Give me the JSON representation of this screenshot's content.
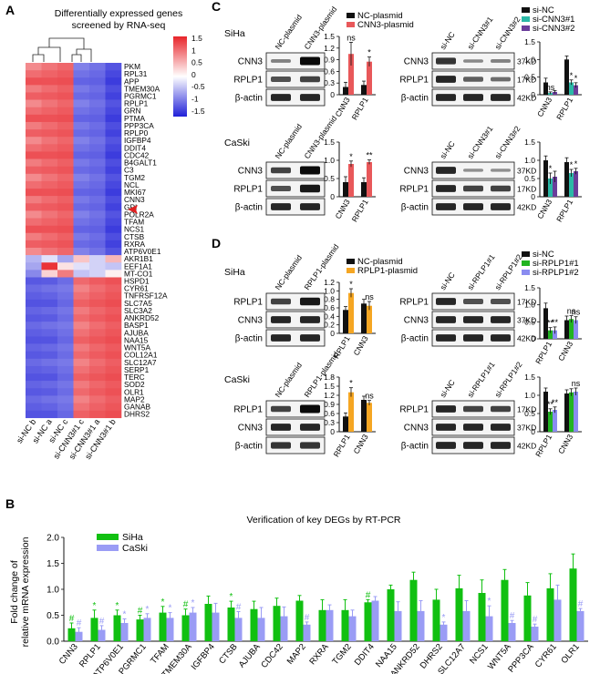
{
  "panel_a": {
    "letter": "A",
    "title_line1": "Differentially expressed genes",
    "title_line2": "screened by RNA-seq",
    "legend_ticks": [
      "1.5",
      "1",
      "0.5",
      "0",
      "-0.5",
      "-1",
      "-1.5"
    ],
    "genes": [
      "PKM",
      "RPL31",
      "APP",
      "TMEM30A",
      "PGRMC1",
      "RPLP1",
      "GRN",
      "PTMA",
      "PPP3CA",
      "RPLP0",
      "IGFBP4",
      "DDIT4",
      "CDC42",
      "B4GALT1",
      "C3",
      "TGM2",
      "NCL",
      "MKI67",
      "CNN3",
      "GPI",
      "POLR2A",
      "TFAM",
      "NCS1",
      "CTSB",
      "RXRA",
      "ATP6V0E1",
      "AKR1B1",
      "EEF1A1",
      "MT-CO1",
      "HSPD1",
      "CYR61",
      "TNFRSF12A",
      "SLC7A5",
      "SLC3A2",
      "ANKRD52",
      "BASP1",
      "AJUBA",
      "NAA15",
      "WNT5A",
      "COL12A1",
      "SLC12A7",
      "SERP1",
      "TERC",
      "SOD2",
      "OLR1",
      "MAP2",
      "GANAB",
      "DHRS2"
    ],
    "samples": [
      "si-NC b",
      "si-NC a",
      "si-NC c",
      "si-CNN3#1 c",
      "si-CNN3#1 a",
      "si-CNN3#1 b"
    ],
    "highlight_gene": "CNN3"
  },
  "panel_c": {
    "letter": "C",
    "rows": [
      {
        "cell": "SiHa",
        "plasmid": {
          "lanes": [
            "NC-plasmid",
            "CNN3-plasmid"
          ],
          "bands": [
            "CNN3",
            "RPLP1",
            "β-actin"
          ],
          "legend": [
            "NC-plasmid",
            "CNN3-plasmid"
          ],
          "sig": [
            "ns",
            "*"
          ]
        },
        "si": {
          "lanes": [
            "si-NC",
            "si-CNN3#1",
            "si-CNN3#2"
          ],
          "bands": [
            "CNN3",
            "RPLP1",
            "β-actin"
          ],
          "kd": [
            "37KD",
            "17KD",
            "42KD"
          ],
          "legend": [
            "si-NC",
            "si-CNN3#1",
            "si-CNN3#2"
          ],
          "sig": [
            "ns",
            "*",
            "*"
          ]
        }
      },
      {
        "cell": "CaSki",
        "plasmid": {
          "lanes": [
            "NC-plasmid",
            "CNN3-plasmid"
          ],
          "bands": [
            "CNN3",
            "RPLP1",
            "β-actin"
          ],
          "sig": [
            "*",
            "**"
          ]
        },
        "si": {
          "lanes": [
            "si-NC",
            "si-CNN3#1",
            "si-CNN3#2"
          ],
          "bands": [
            "CNN3",
            "RPLP1",
            "β-actin"
          ],
          "kd": [
            "37KD",
            "17KD",
            "42KD"
          ],
          "sig": [
            "*",
            "*",
            "*"
          ]
        }
      }
    ]
  },
  "panel_d": {
    "letter": "D",
    "rows": [
      {
        "cell": "SiHa",
        "plasmid": {
          "lanes": [
            "NC-plasmid",
            "RPLP1-plasmid"
          ],
          "bands": [
            "RPLP1",
            "CNN3",
            "β-actin"
          ],
          "legend": [
            "NC-plasmid",
            "RPLP1-plasmid"
          ],
          "sig": [
            "*",
            "ns"
          ]
        },
        "si": {
          "lanes": [
            "si-NC",
            "si-RPLP1#1",
            "si-RPLP1#2"
          ],
          "bands": [
            "RPLP1",
            "CNN3",
            "β-actin"
          ],
          "kd": [
            "17KD",
            "37KD",
            "42KD"
          ],
          "legend": [
            "si-NC",
            "si-RPLP1#1",
            "si-RPLP1#2"
          ],
          "sig": [
            "**",
            "**",
            "ns",
            "ns"
          ]
        }
      },
      {
        "cell": "CaSki",
        "plasmid": {
          "lanes": [
            "NC-plasmid",
            "RPLP1-plasmid"
          ],
          "bands": [
            "RPLP1",
            "CNN3",
            "β-actin"
          ],
          "sig": [
            "*",
            "ns"
          ]
        },
        "si": {
          "lanes": [
            "si-NC",
            "si-RPLP1#1",
            "si-RPLP1#2"
          ],
          "bands": [
            "RPLP1",
            "CNN3",
            "β-actin"
          ],
          "kd": [
            "17KD",
            "37KD",
            "42KD"
          ],
          "sig": [
            "**",
            "**",
            "ns"
          ]
        }
      }
    ]
  },
  "panel_b": {
    "letter": "B",
    "title": "Verification of key DEGs by RT-PCR",
    "ylabel_line1": "Fold change of",
    "ylabel_line2": "relative mRNA expression",
    "legend": [
      "SiHa",
      "CaSki"
    ]
  },
  "colors": {
    "heat_high": "#e8242a",
    "heat_mid": "#ffffff",
    "heat_low": "#2020d8",
    "nc": "#111111",
    "red": "#e8585a",
    "teal": "#2bb8a6",
    "purple": "#6a3d9a",
    "orange": "#f5a623",
    "green": "#22b422",
    "periwinkle": "#8a8cf0",
    "siha": "#11c011",
    "caski": "#9a9cf5"
  },
  "chart_data": [
    {
      "type": "bar",
      "id": "C-SiHa-plasmid",
      "categories": [
        "CNN3",
        "RPLP1"
      ],
      "series": [
        {
          "name": "NC-plasmid",
          "values": [
            0.2,
            0.25
          ]
        },
        {
          "name": "CNN3-plasmid",
          "values": [
            1.05,
            0.85
          ]
        }
      ],
      "errors": [
        [
          0.12,
          0.1
        ],
        [
          0.3,
          0.12
        ]
      ],
      "yticks": [
        "0",
        "0.3",
        "0.6",
        "0.9",
        "1.2",
        "1.5"
      ],
      "ylim": [
        0,
        1.5
      ]
    },
    {
      "type": "bar",
      "id": "C-SiHa-si",
      "categories": [
        "CNN3",
        "RPLP1"
      ],
      "series": [
        {
          "name": "si-NC",
          "values": [
            0.35,
            1.0
          ]
        },
        {
          "name": "si-CNN3#1",
          "values": [
            0.05,
            0.35
          ]
        },
        {
          "name": "si-CNN3#2",
          "values": [
            0.08,
            0.27
          ]
        }
      ],
      "errors": [
        [
          0.12,
          0.1
        ],
        [
          0.03,
          0.07
        ],
        [
          0.04,
          0.07
        ]
      ],
      "yticks": [
        "0",
        "0.5",
        "1.0",
        "1.5"
      ],
      "ylim": [
        0,
        1.5
      ]
    },
    {
      "type": "bar",
      "id": "C-CaSki-plasmid",
      "categories": [
        "CNN3",
        "RPLP1"
      ],
      "series": [
        {
          "name": "NC-plasmid",
          "values": [
            0.4,
            0.4
          ]
        },
        {
          "name": "CNN3-plasmid",
          "values": [
            0.9,
            0.95
          ]
        }
      ],
      "errors": [
        [
          0.15,
          0.12
        ],
        [
          0.08,
          0.06
        ]
      ],
      "yticks": [
        "0",
        "0.5",
        "1.0",
        "1.5"
      ],
      "ylim": [
        0,
        1.5
      ]
    },
    {
      "type": "bar",
      "id": "C-CaSki-si",
      "categories": [
        "CNN3",
        "RPLP1"
      ],
      "series": [
        {
          "name": "si-NC",
          "values": [
            1.0,
            0.95
          ]
        },
        {
          "name": "si-CNN3#1",
          "values": [
            0.5,
            0.65
          ]
        },
        {
          "name": "si-CNN3#2",
          "values": [
            0.55,
            0.7
          ]
        }
      ],
      "errors": [
        [
          0.12,
          0.12
        ],
        [
          0.15,
          0.1
        ],
        [
          0.15,
          0.08
        ]
      ],
      "yticks": [
        "0",
        "0.5",
        "1.0",
        "1.5"
      ],
      "ylim": [
        0,
        1.5
      ]
    },
    {
      "type": "bar",
      "id": "D-SiHa-plasmid",
      "categories": [
        "RPLP1",
        "CNN3"
      ],
      "series": [
        {
          "name": "NC-plasmid",
          "values": [
            0.55,
            0.7
          ]
        },
        {
          "name": "RPLP1-plasmid",
          "values": [
            0.95,
            0.65
          ]
        }
      ],
      "errors": [
        [
          0.08,
          0.1
        ],
        [
          0.1,
          0.1
        ]
      ],
      "yticks": [
        "0",
        "0.2",
        "0.4",
        "0.6",
        "0.8",
        "1.0",
        "1.2"
      ],
      "ylim": [
        0,
        1.2
      ]
    },
    {
      "type": "bar",
      "id": "D-SiHa-si",
      "categories": [
        "RPLP1",
        "CNN3"
      ],
      "series": [
        {
          "name": "si-NC",
          "values": [
            0.9,
            0.55
          ]
        },
        {
          "name": "si-RPLP1#1",
          "values": [
            0.25,
            0.58
          ]
        },
        {
          "name": "si-RPLP1#2",
          "values": [
            0.25,
            0.55
          ]
        }
      ],
      "errors": [
        [
          0.15,
          0.12
        ],
        [
          0.08,
          0.1
        ],
        [
          0.1,
          0.1
        ]
      ],
      "yticks": [
        "0",
        "0.5",
        "1.0",
        "1.5"
      ],
      "ylim": [
        0,
        1.5
      ]
    },
    {
      "type": "bar",
      "id": "D-CaSki-plasmid",
      "categories": [
        "RPLP1",
        "CNN3"
      ],
      "series": [
        {
          "name": "NC-plasmid",
          "values": [
            0.5,
            1.05
          ]
        },
        {
          "name": "RPLP1-plasmid",
          "values": [
            1.3,
            0.95
          ]
        }
      ],
      "errors": [
        [
          0.12,
          0.12
        ],
        [
          0.15,
          0.08
        ]
      ],
      "yticks": [
        "0",
        "0.3",
        "0.6",
        "0.9",
        "1.2",
        "1.5",
        "1.8"
      ],
      "ylim": [
        0,
        1.8
      ]
    },
    {
      "type": "bar",
      "id": "D-CaSki-si",
      "categories": [
        "RPLP1",
        "CNN3"
      ],
      "series": [
        {
          "name": "si-NC",
          "values": [
            1.1,
            1.05
          ]
        },
        {
          "name": "si-RPLP1#1",
          "values": [
            0.55,
            1.08
          ]
        },
        {
          "name": "si-RPLP1#2",
          "values": [
            0.6,
            1.1
          ]
        }
      ],
      "errors": [
        [
          0.1,
          0.1
        ],
        [
          0.08,
          0.1
        ],
        [
          0.08,
          0.1
        ]
      ],
      "yticks": [
        "0",
        "0.5",
        "1.0",
        "1.5"
      ],
      "ylim": [
        0,
        1.5
      ]
    },
    {
      "type": "bar",
      "id": "B-RT-PCR",
      "title": "Verification of key DEGs by RT-PCR",
      "ylabel": "Fold change of relative mRNA expression",
      "categories": [
        "CNN3",
        "RPLP1",
        "ATP6V0E1",
        "PGRMC1",
        "TFAM",
        "TMEM30A",
        "IGFBP4",
        "CTSB",
        "AJUBA",
        "CDC42",
        "MAP2",
        "RXRA",
        "TGM2",
        "DDIT4",
        "NAA15",
        "ANKRD52",
        "DHRS2",
        "SLC12A7",
        "NCS1",
        "WNT5A",
        "PPP3CA",
        "CYR61",
        "OLR1"
      ],
      "series": [
        {
          "name": "SiHa",
          "values": [
            0.25,
            0.45,
            0.5,
            0.42,
            0.55,
            0.5,
            0.72,
            0.65,
            0.62,
            0.68,
            0.78,
            0.6,
            0.6,
            0.75,
            1.0,
            1.18,
            0.8,
            1.02,
            0.93,
            1.18,
            0.88,
            1.02,
            1.4
          ]
        },
        {
          "name": "CaSki",
          "values": [
            0.18,
            0.22,
            0.35,
            0.45,
            0.45,
            0.55,
            0.55,
            0.45,
            0.45,
            0.48,
            0.32,
            0.6,
            0.48,
            0.78,
            0.58,
            0.58,
            0.32,
            0.58,
            0.48,
            0.35,
            0.28,
            0.8,
            0.58
          ]
        }
      ],
      "errors": [
        [
          0.1,
          0.15,
          0.1,
          0.08,
          0.12,
          0.12,
          0.15,
          0.12,
          0.15,
          0.15,
          0.1,
          0.2,
          0.2,
          0.05,
          0.08,
          0.15,
          0.2,
          0.25,
          0.25,
          0.2,
          0.25,
          0.28,
          0.28
        ],
        [
          0.08,
          0.08,
          0.08,
          0.08,
          0.1,
          0.1,
          0.18,
          0.12,
          0.2,
          0.18,
          0.05,
          0.1,
          0.12,
          0.08,
          0.18,
          0.2,
          0.05,
          0.2,
          0.2,
          0.05,
          0.05,
          0.28,
          0.05
        ]
      ],
      "sig_siha": [
        "#",
        "*",
        "*",
        "#",
        "*",
        "#",
        "",
        "*",
        "",
        "",
        "",
        "",
        "",
        "#",
        "",
        "",
        "",
        "",
        "",
        "",
        "",
        "",
        ""
      ],
      "sig_caski": [
        "#",
        "#",
        "*",
        "*",
        "*",
        "*",
        "",
        "#",
        "",
        "",
        "#",
        "",
        "",
        "",
        "",
        "",
        "*",
        "",
        "*",
        "#",
        "#",
        "",
        "#"
      ],
      "yticks": [
        "0.0",
        "0.5",
        "1.0",
        "1.5",
        "2.0"
      ],
      "ylim": [
        0,
        2.0
      ]
    }
  ]
}
